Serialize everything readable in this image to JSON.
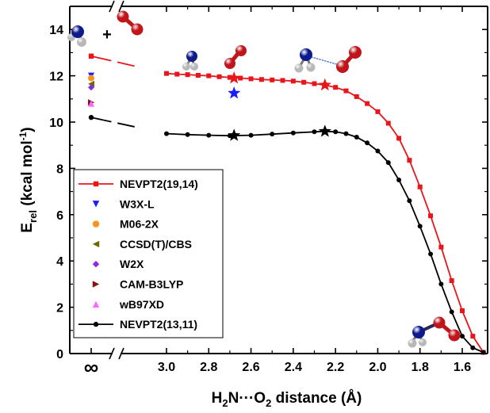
{
  "chart_data": {
    "type": "line",
    "ylabel": "E",
    "ylabel_sub": "rel",
    "ylabel_unit_pre": " (kcal mol",
    "ylabel_unit_sup": "-1",
    "ylabel_unit_post": ")",
    "xlabel_parts": [
      "H",
      "2",
      "N···O",
      "2",
      " distance (Å)"
    ],
    "x_axis_reversed": true,
    "x_axis_broken": true,
    "infinity_label": "∞",
    "plus_label": "+",
    "xlim": [
      3.12,
      1.48
    ],
    "ylim": [
      0,
      15
    ],
    "x_ticks": [
      3.0,
      2.8,
      2.6,
      2.4,
      2.2,
      2.0,
      1.8,
      1.6
    ],
    "x_tick_labels": [
      "3.0",
      "2.8",
      "2.6",
      "2.4",
      "2.2",
      "2.0",
      "1.8",
      "1.6"
    ],
    "y_ticks": [
      0,
      2,
      4,
      6,
      8,
      10,
      12,
      14
    ],
    "y_tick_labels": [
      "0",
      "2",
      "4",
      "6",
      "8",
      "10",
      "12",
      "14"
    ],
    "legend_position": "lower-left",
    "series": [
      {
        "name": "NEVPT2(19,14)",
        "color": "#e8161b",
        "marker": "square",
        "infinity_value": 12.85,
        "x": [
          3.0,
          2.95,
          2.9,
          2.85,
          2.8,
          2.75,
          2.7,
          2.65,
          2.6,
          2.55,
          2.5,
          2.45,
          2.4,
          2.35,
          2.3,
          2.25,
          2.2,
          2.15,
          2.1,
          2.05,
          2.0,
          1.95,
          1.9,
          1.85,
          1.8,
          1.75,
          1.7,
          1.65,
          1.6,
          1.55,
          1.5
        ],
        "y": [
          12.1,
          12.07,
          12.05,
          12.02,
          12.0,
          11.96,
          11.93,
          11.9,
          11.87,
          11.84,
          11.82,
          11.8,
          11.77,
          11.72,
          11.66,
          11.6,
          11.5,
          11.35,
          11.1,
          10.8,
          10.45,
          9.95,
          9.3,
          8.35,
          7.2,
          5.95,
          4.6,
          3.15,
          1.85,
          0.75,
          0.05
        ]
      },
      {
        "name": "NEVPT2(13,11)",
        "color": "#000000",
        "marker": "circle",
        "infinity_value": 10.2,
        "x": [
          3.0,
          2.9,
          2.8,
          2.7,
          2.6,
          2.5,
          2.4,
          2.3,
          2.25,
          2.2,
          2.15,
          2.1,
          2.05,
          2.0,
          1.95,
          1.9,
          1.85,
          1.8,
          1.75,
          1.7,
          1.65,
          1.6,
          1.55,
          1.5
        ],
        "y": [
          9.5,
          9.46,
          9.43,
          9.41,
          9.43,
          9.48,
          9.53,
          9.58,
          9.6,
          9.58,
          9.5,
          9.35,
          9.1,
          8.75,
          8.25,
          7.5,
          6.6,
          5.5,
          4.3,
          3.0,
          1.8,
          0.75,
          0.25,
          0.05
        ]
      }
    ],
    "reference_points": [
      {
        "name": "W3X-L",
        "color": "#1c1cff",
        "marker": "triangle-down",
        "value": 12.0
      },
      {
        "name": "M06-2X",
        "color": "#f7941d",
        "marker": "circle",
        "value": 11.9
      },
      {
        "name": "CCSD(T)/CBS",
        "color": "#6b6b00",
        "marker": "triangle-left",
        "value": 11.65
      },
      {
        "name": "W2X",
        "color": "#8a2be2",
        "marker": "diamond",
        "value": 11.5
      },
      {
        "name": "CAM-B3LYP",
        "color": "#8b1010",
        "marker": "triangle-right",
        "value": 10.85
      },
      {
        "name": "wB97XD",
        "color": "#ff66ff",
        "marker": "triangle-up",
        "value": 10.8
      }
    ],
    "star_markers": [
      {
        "x": 2.68,
        "y": 11.9,
        "color": "#e8161b"
      },
      {
        "x": 2.25,
        "y": 11.6,
        "color": "#e8161b"
      },
      {
        "x": 2.68,
        "y": 9.42,
        "color": "#000000"
      },
      {
        "x": 2.25,
        "y": 9.6,
        "color": "#000000"
      },
      {
        "x": 2.68,
        "y": 11.25,
        "color": "#1c1cff"
      }
    ],
    "molecule_icons": [
      "nh2-o2-separated",
      "nh2-o2-early",
      "nh2-o2-middle",
      "nh2-o2-bonded"
    ]
  }
}
